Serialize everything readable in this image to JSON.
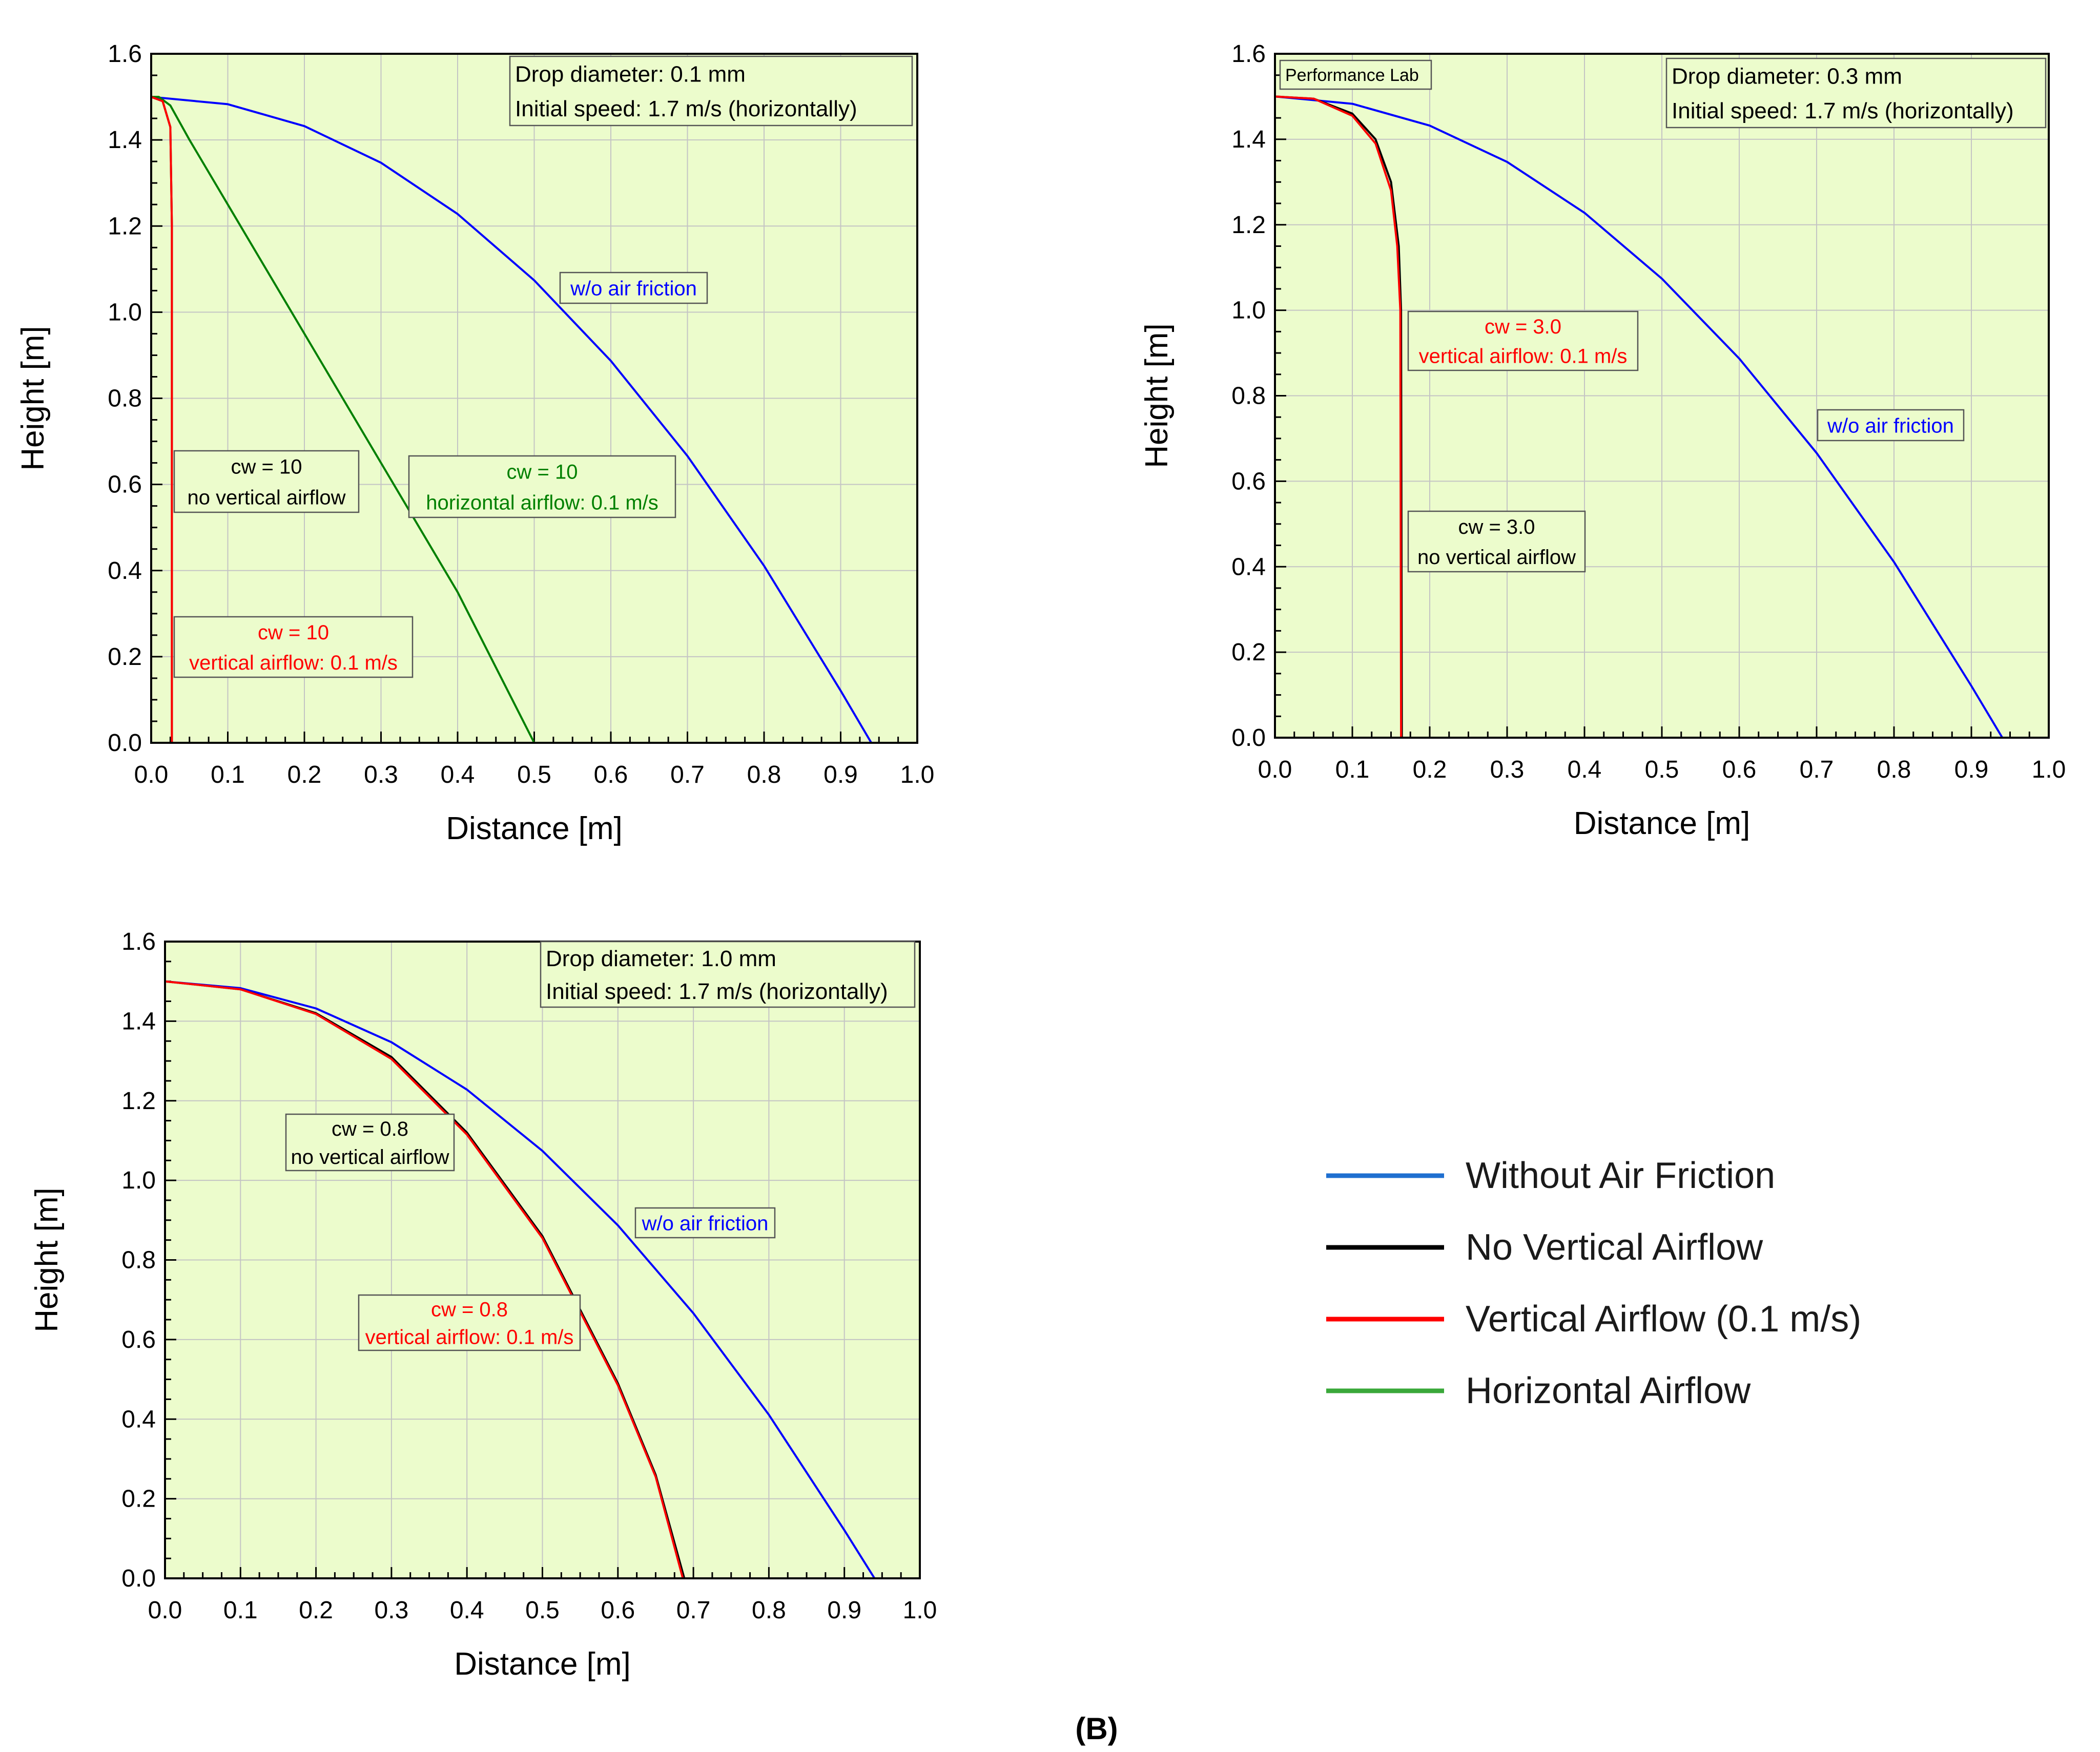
{
  "figure_label": "(B)",
  "legend": {
    "items": [
      {
        "label": "Without Air Friction",
        "color": "#1f6fd0"
      },
      {
        "label": "No Vertical Airflow",
        "color": "#000000"
      },
      {
        "label": "Vertical Airflow (0.1 m/s)",
        "color": "#ff0000"
      },
      {
        "label": "Horizontal Airflow",
        "color": "#3aa83a"
      }
    ]
  },
  "chart_data": [
    {
      "type": "line",
      "xlabel": "Distance  [m]",
      "ylabel": "Height  [m]",
      "xlim": [
        0,
        1.0
      ],
      "ylim": [
        0,
        1.6
      ],
      "xticks": [
        "0.0",
        "0.1",
        "0.2",
        "0.3",
        "0.4",
        "0.5",
        "0.6",
        "0.7",
        "0.8",
        "0.9",
        "1.0"
      ],
      "yticks": [
        "0.0",
        "0.2",
        "0.4",
        "0.6",
        "0.8",
        "1.0",
        "1.2",
        "1.4",
        "1.6"
      ],
      "grid": true,
      "background": "#ecfccc",
      "info_box": [
        "Drop diameter: 0.1 mm",
        "Initial speed: 1.7 m/s (horizontally)"
      ],
      "series": [
        {
          "color": "#0000ff",
          "points": [
            [
              0,
              1.5
            ],
            [
              0.1,
              1.483
            ],
            [
              0.2,
              1.432
            ],
            [
              0.3,
              1.347
            ],
            [
              0.4,
              1.228
            ],
            [
              0.5,
              1.074
            ],
            [
              0.6,
              0.887
            ],
            [
              0.7,
              0.666
            ],
            [
              0.8,
              0.411
            ],
            [
              0.9,
              0.121
            ],
            [
              0.94,
              0.0
            ]
          ]
        },
        {
          "color": "#008000",
          "points": [
            [
              0,
              1.5
            ],
            [
              0.01,
              1.5
            ],
            [
              0.025,
              1.48
            ],
            [
              0.05,
              1.4
            ],
            [
              0.1,
              1.25
            ],
            [
              0.2,
              0.95
            ],
            [
              0.3,
              0.65
            ],
            [
              0.4,
              0.35
            ],
            [
              0.5,
              0.0
            ]
          ]
        },
        {
          "color": "#000000",
          "points": [
            [
              0,
              1.5
            ],
            [
              0.015,
              1.49
            ],
            [
              0.025,
              1.43
            ],
            [
              0.027,
              1.2
            ],
            [
              0.027,
              0.0
            ]
          ]
        },
        {
          "color": "#ff0000",
          "points": [
            [
              0,
              1.5
            ],
            [
              0.015,
              1.49
            ],
            [
              0.025,
              1.43
            ],
            [
              0.027,
              1.2
            ],
            [
              0.027,
              0.0
            ]
          ]
        }
      ],
      "annotations": [
        {
          "lines": [
            "w/o air friction"
          ],
          "color": "#0000ff"
        },
        {
          "lines": [
            "cw = 10",
            "no vertical airflow"
          ],
          "color": "#000000"
        },
        {
          "lines": [
            "cw = 10",
            "horizontal airflow: 0.1 m/s"
          ],
          "color": "#008000"
        },
        {
          "lines": [
            "cw = 10",
            "vertical airflow: 0.1 m/s"
          ],
          "color": "#ff0000"
        }
      ]
    },
    {
      "type": "line",
      "xlabel": "Distance  [m]",
      "ylabel": "Height  [m]",
      "xlim": [
        0,
        1.0
      ],
      "ylim": [
        0,
        1.6
      ],
      "xticks": [
        "0.0",
        "0.1",
        "0.2",
        "0.3",
        "0.4",
        "0.5",
        "0.6",
        "0.7",
        "0.8",
        "0.9",
        "1.0"
      ],
      "yticks": [
        "0.0",
        "0.2",
        "0.4",
        "0.6",
        "0.8",
        "1.0",
        "1.2",
        "1.4",
        "1.6"
      ],
      "grid": true,
      "background": "#ecfccc",
      "corner_label": "Performance Lab",
      "info_box": [
        "Drop diameter: 0.3 mm",
        "Initial speed: 1.7 m/s (horizontally)"
      ],
      "series": [
        {
          "color": "#0000ff",
          "points": [
            [
              0,
              1.5
            ],
            [
              0.1,
              1.483
            ],
            [
              0.2,
              1.432
            ],
            [
              0.3,
              1.347
            ],
            [
              0.4,
              1.228
            ],
            [
              0.5,
              1.074
            ],
            [
              0.6,
              0.887
            ],
            [
              0.7,
              0.666
            ],
            [
              0.8,
              0.411
            ],
            [
              0.9,
              0.121
            ],
            [
              0.94,
              0.0
            ]
          ]
        },
        {
          "color": "#000000",
          "points": [
            [
              0,
              1.5
            ],
            [
              0.05,
              1.495
            ],
            [
              0.1,
              1.46
            ],
            [
              0.13,
              1.4
            ],
            [
              0.15,
              1.3
            ],
            [
              0.16,
              1.15
            ],
            [
              0.163,
              1.0
            ],
            [
              0.164,
              0.0
            ]
          ]
        },
        {
          "color": "#ff0000",
          "points": [
            [
              0,
              1.5
            ],
            [
              0.05,
              1.495
            ],
            [
              0.1,
              1.455
            ],
            [
              0.13,
              1.39
            ],
            [
              0.15,
              1.28
            ],
            [
              0.158,
              1.15
            ],
            [
              0.162,
              1.0
            ],
            [
              0.163,
              0.0
            ]
          ]
        }
      ],
      "annotations": [
        {
          "lines": [
            "cw = 3.0",
            "vertical airflow: 0.1 m/s"
          ],
          "color": "#ff0000"
        },
        {
          "lines": [
            "w/o air friction"
          ],
          "color": "#0000ff"
        },
        {
          "lines": [
            "cw = 3.0",
            "no vertical airflow"
          ],
          "color": "#000000"
        }
      ]
    },
    {
      "type": "line",
      "xlabel": "Distance  [m]",
      "ylabel": "Height  [m]",
      "xlim": [
        0,
        1.0
      ],
      "ylim": [
        0,
        1.6
      ],
      "xticks": [
        "0.0",
        "0.1",
        "0.2",
        "0.3",
        "0.4",
        "0.5",
        "0.6",
        "0.7",
        "0.8",
        "0.9",
        "1.0"
      ],
      "yticks": [
        "0.0",
        "0.2",
        "0.4",
        "0.6",
        "0.8",
        "1.0",
        "1.2",
        "1.4",
        "1.6"
      ],
      "grid": true,
      "background": "#ecfccc",
      "info_box": [
        "Drop diameter: 1.0 mm",
        "Initial speed: 1.7 m/s (horizontally)"
      ],
      "series": [
        {
          "color": "#0000ff",
          "points": [
            [
              0,
              1.5
            ],
            [
              0.1,
              1.483
            ],
            [
              0.2,
              1.432
            ],
            [
              0.3,
              1.347
            ],
            [
              0.4,
              1.228
            ],
            [
              0.5,
              1.074
            ],
            [
              0.6,
              0.887
            ],
            [
              0.7,
              0.666
            ],
            [
              0.8,
              0.411
            ],
            [
              0.9,
              0.121
            ],
            [
              0.94,
              0.0
            ]
          ]
        },
        {
          "color": "#000000",
          "points": [
            [
              0,
              1.5
            ],
            [
              0.1,
              1.48
            ],
            [
              0.2,
              1.42
            ],
            [
              0.3,
              1.31
            ],
            [
              0.4,
              1.12
            ],
            [
              0.5,
              0.86
            ],
            [
              0.6,
              0.49
            ],
            [
              0.65,
              0.26
            ],
            [
              0.688,
              0.0
            ]
          ]
        },
        {
          "color": "#ff0000",
          "points": [
            [
              0,
              1.5
            ],
            [
              0.1,
              1.48
            ],
            [
              0.2,
              1.418
            ],
            [
              0.3,
              1.305
            ],
            [
              0.4,
              1.115
            ],
            [
              0.5,
              0.855
            ],
            [
              0.6,
              0.485
            ],
            [
              0.65,
              0.255
            ],
            [
              0.686,
              0.0
            ]
          ]
        }
      ],
      "annotations": [
        {
          "lines": [
            "cw = 0.8",
            "no vertical airflow"
          ],
          "color": "#000000"
        },
        {
          "lines": [
            "w/o air friction"
          ],
          "color": "#0000ff"
        },
        {
          "lines": [
            "cw = 0.8",
            "vertical airflow: 0.1 m/s"
          ],
          "color": "#ff0000"
        }
      ]
    }
  ]
}
